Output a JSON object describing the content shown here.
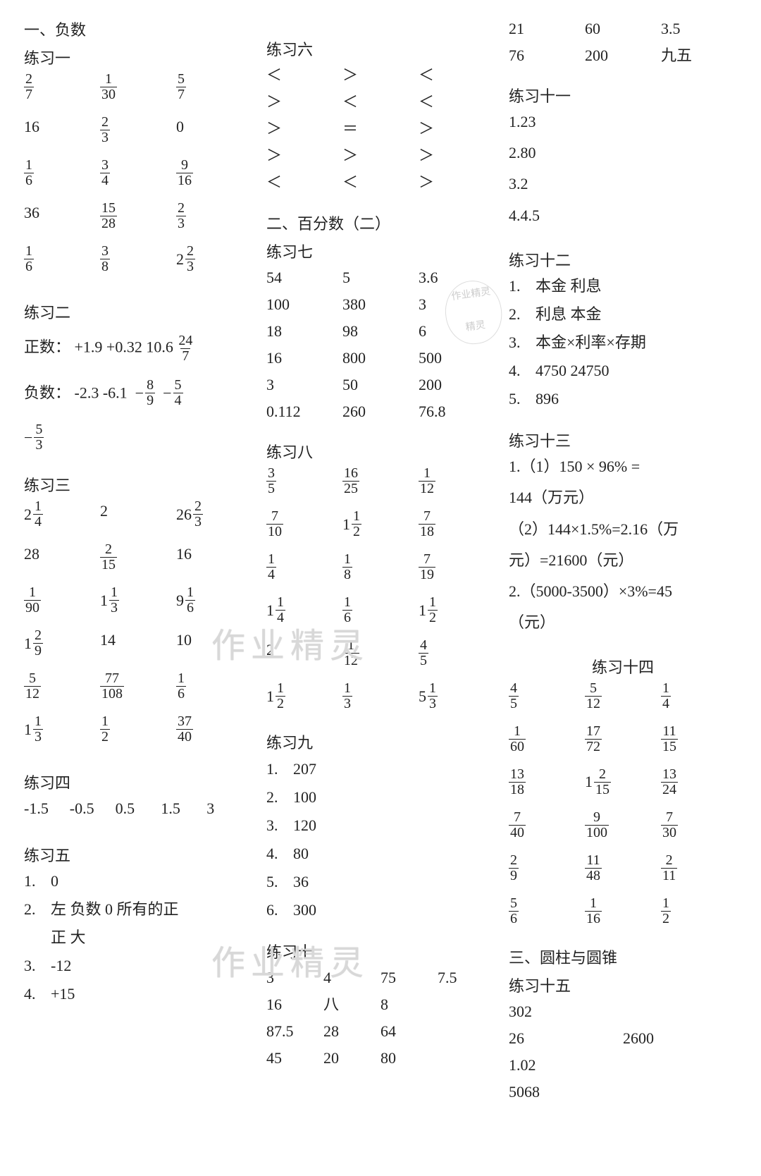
{
  "col1": {
    "h1": "一、负数",
    "ex1": {
      "title": "练习一",
      "rows": [
        [
          {
            "t": "frac",
            "n": "2",
            "d": "7"
          },
          {
            "t": "frac",
            "n": "1",
            "d": "30"
          },
          {
            "t": "frac",
            "n": "5",
            "d": "7"
          }
        ],
        [
          {
            "t": "txt",
            "v": "16"
          },
          {
            "t": "frac",
            "n": "2",
            "d": "3"
          },
          {
            "t": "txt",
            "v": "0"
          }
        ],
        [
          {
            "t": "frac",
            "n": "1",
            "d": "6"
          },
          {
            "t": "frac",
            "n": "3",
            "d": "4"
          },
          {
            "t": "frac",
            "n": "9",
            "d": "16"
          }
        ],
        [
          {
            "t": "txt",
            "v": "36"
          },
          {
            "t": "frac",
            "n": "15",
            "d": "28"
          },
          {
            "t": "frac",
            "n": "2",
            "d": "3"
          }
        ],
        [
          {
            "t": "frac",
            "n": "1",
            "d": "6"
          },
          {
            "t": "frac",
            "n": "3",
            "d": "8"
          },
          {
            "t": "mixed",
            "w": "2",
            "n": "2",
            "d": "3"
          }
        ]
      ]
    },
    "ex2": {
      "title": "练习二",
      "pos_label": "正数：",
      "pos_vals": "+1.9 +0.32 10.6",
      "pos_frac": {
        "n": "24",
        "d": "7"
      },
      "neg_label": "负数：",
      "neg_vals": "-2.3 -6.1",
      "neg_fracs": [
        {
          "n": "8",
          "d": "9"
        },
        {
          "n": "5",
          "d": "4"
        }
      ],
      "neg_extra": {
        "n": "5",
        "d": "3"
      }
    },
    "ex3": {
      "title": "练习三",
      "rows": [
        [
          {
            "t": "mixed",
            "w": "2",
            "n": "1",
            "d": "4"
          },
          {
            "t": "txt",
            "v": "2"
          },
          {
            "t": "mixed",
            "w": "26",
            "n": "2",
            "d": "3"
          }
        ],
        [
          {
            "t": "txt",
            "v": "28"
          },
          {
            "t": "frac",
            "n": "2",
            "d": "15"
          },
          {
            "t": "txt",
            "v": "16"
          }
        ],
        [
          {
            "t": "frac",
            "n": "1",
            "d": "90"
          },
          {
            "t": "mixed",
            "w": "1",
            "n": "1",
            "d": "3"
          },
          {
            "t": "mixed",
            "w": "9",
            "n": "1",
            "d": "6"
          }
        ],
        [
          {
            "t": "mixed",
            "w": "1",
            "n": "2",
            "d": "9"
          },
          {
            "t": "txt",
            "v": "14"
          },
          {
            "t": "txt",
            "v": "10"
          }
        ],
        [
          {
            "t": "frac",
            "n": "5",
            "d": "12"
          },
          {
            "t": "frac",
            "n": "77",
            "d": "108"
          },
          {
            "t": "frac",
            "n": "1",
            "d": "6"
          }
        ],
        [
          {
            "t": "mixed",
            "w": "1",
            "n": "1",
            "d": "3"
          },
          {
            "t": "frac",
            "n": "1",
            "d": "2"
          },
          {
            "t": "frac",
            "n": "37",
            "d": "40"
          }
        ]
      ]
    },
    "ex4": {
      "title": "练习四",
      "vals": [
        "-1.5",
        "-0.5",
        "0.5",
        "1.5",
        "3"
      ]
    },
    "ex5": {
      "title": "练习五",
      "items": [
        {
          "n": "1.",
          "v": "0"
        },
        {
          "n": "2.",
          "v": "左 负数  0 所有的正"
        },
        {
          "n": "",
          "v": "正  大"
        },
        {
          "n": "3.",
          "v": "-12"
        },
        {
          "n": "4.",
          "v": "+15"
        }
      ]
    }
  },
  "col2": {
    "ex6": {
      "title": "练习六",
      "rows": [
        [
          "＜",
          "＞",
          "＜"
        ],
        [
          "＞",
          "＜",
          "＜"
        ],
        [
          "＞",
          "＝",
          "＞"
        ],
        [
          "＞",
          "＞",
          "＞"
        ],
        [
          "＜",
          "＜",
          "＞"
        ]
      ]
    },
    "h2": "二、百分数（二）",
    "ex7": {
      "title": "练习七",
      "rows": [
        [
          "54",
          "5",
          "3.6"
        ],
        [
          "100",
          "380",
          "3"
        ],
        [
          "18",
          "98",
          "6"
        ],
        [
          "16",
          "800",
          "500"
        ],
        [
          "3",
          "50",
          "200"
        ],
        [
          "0.112",
          "260",
          "76.8"
        ]
      ]
    },
    "ex8": {
      "title": "练习八",
      "rows": [
        [
          {
            "t": "frac",
            "n": "3",
            "d": "5"
          },
          {
            "t": "frac",
            "n": "16",
            "d": "25"
          },
          {
            "t": "frac",
            "n": "1",
            "d": "12"
          }
        ],
        [
          {
            "t": "frac",
            "n": "7",
            "d": "10"
          },
          {
            "t": "mixed",
            "w": "1",
            "n": "1",
            "d": "2"
          },
          {
            "t": "frac",
            "n": "7",
            "d": "18"
          }
        ],
        [
          {
            "t": "frac",
            "n": "1",
            "d": "4"
          },
          {
            "t": "frac",
            "n": "1",
            "d": "8"
          },
          {
            "t": "frac",
            "n": "7",
            "d": "19"
          }
        ],
        [
          {
            "t": "mixed",
            "w": "1",
            "n": "1",
            "d": "4"
          },
          {
            "t": "frac",
            "n": "1",
            "d": "6"
          },
          {
            "t": "mixed",
            "w": "1",
            "n": "1",
            "d": "2"
          }
        ],
        [
          {
            "t": "txt",
            "v": "2"
          },
          {
            "t": "frac",
            "n": "1",
            "d": "12"
          },
          {
            "t": "frac",
            "n": "4",
            "d": "5"
          }
        ],
        [
          {
            "t": "mixed",
            "w": "1",
            "n": "1",
            "d": "2"
          },
          {
            "t": "frac",
            "n": "1",
            "d": "3"
          },
          {
            "t": "mixed",
            "w": "5",
            "n": "1",
            "d": "3"
          }
        ]
      ]
    },
    "ex9": {
      "title": "练习九",
      "items": [
        {
          "n": "1.",
          "v": "207"
        },
        {
          "n": "2.",
          "v": "100"
        },
        {
          "n": "3.",
          "v": "120"
        },
        {
          "n": "4.",
          "v": "80"
        },
        {
          "n": "5.",
          "v": "36"
        },
        {
          "n": "6.",
          "v": "300"
        }
      ]
    },
    "ex10": {
      "title": "练习十",
      "rows": [
        [
          "3",
          "4",
          "75",
          "7.5"
        ],
        [
          "16",
          "八",
          "8",
          ""
        ],
        [
          "87.5",
          "28",
          "64",
          ""
        ],
        [
          "45",
          "20",
          "80",
          ""
        ]
      ]
    }
  },
  "col3": {
    "top_rows": [
      [
        "21",
        "60",
        "3.5"
      ],
      [
        "76",
        "200",
        "九五"
      ]
    ],
    "ex11": {
      "title": "练习十一",
      "items": [
        "1.23",
        "2.80",
        "3.2",
        "4.4.5"
      ]
    },
    "ex12": {
      "title": "练习十二",
      "items": [
        {
          "n": "1.",
          "v": "本金  利息"
        },
        {
          "n": "2.",
          "v": "利息  本金"
        },
        {
          "n": "3.",
          "v": "本金×利率×存期"
        },
        {
          "n": "4.",
          "v": "4750   24750"
        },
        {
          "n": "5.",
          "v": "896"
        }
      ]
    },
    "ex13": {
      "title": "练习十三",
      "lines": [
        "1.（1）150 × 96% =",
        "144（万元）",
        "（2）144×1.5%=2.16（万",
        "元）=21600（元）",
        "2.（5000-3500）×3%=45",
        "（元）"
      ]
    },
    "ex14": {
      "title": "练习十四",
      "rows": [
        [
          {
            "t": "frac",
            "n": "4",
            "d": "5"
          },
          {
            "t": "frac",
            "n": "5",
            "d": "12"
          },
          {
            "t": "frac",
            "n": "1",
            "d": "4"
          }
        ],
        [
          {
            "t": "frac",
            "n": "1",
            "d": "60"
          },
          {
            "t": "frac",
            "n": "17",
            "d": "72"
          },
          {
            "t": "frac",
            "n": "11",
            "d": "15"
          }
        ],
        [
          {
            "t": "frac",
            "n": "13",
            "d": "18"
          },
          {
            "t": "mixed",
            "w": "1",
            "n": "2",
            "d": "15"
          },
          {
            "t": "frac",
            "n": "13",
            "d": "24"
          }
        ],
        [
          {
            "t": "frac",
            "n": "7",
            "d": "40"
          },
          {
            "t": "frac",
            "n": "9",
            "d": "100"
          },
          {
            "t": "frac",
            "n": "7",
            "d": "30"
          }
        ],
        [
          {
            "t": "frac",
            "n": "2",
            "d": "9"
          },
          {
            "t": "frac",
            "n": "11",
            "d": "48"
          },
          {
            "t": "frac",
            "n": "2",
            "d": "11"
          }
        ],
        [
          {
            "t": "frac",
            "n": "5",
            "d": "6"
          },
          {
            "t": "frac",
            "n": "1",
            "d": "16"
          },
          {
            "t": "frac",
            "n": "1",
            "d": "2"
          }
        ]
      ]
    },
    "h3": "三、圆柱与圆锥",
    "ex15": {
      "title": "练习十五",
      "rows": [
        [
          "302",
          ""
        ],
        [
          "26",
          "2600"
        ],
        [
          "1.02",
          ""
        ],
        [
          "5068",
          ""
        ]
      ]
    }
  },
  "watermarks": {
    "wm1": "作业精灵",
    "wm2": "作业精灵",
    "seal_top": "作业精灵",
    "seal_bottom": "精灵"
  }
}
